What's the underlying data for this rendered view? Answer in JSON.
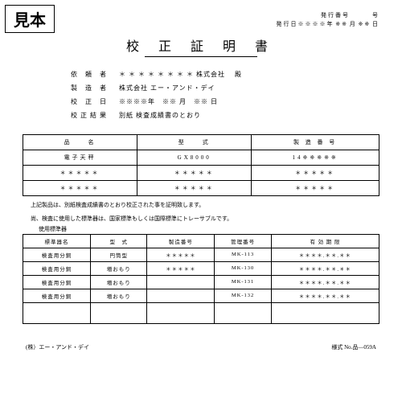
{
  "sample": "見本",
  "hdr": {
    "issue_no_label": "発行番号",
    "issue_no_suffix": "号",
    "issue_date_label": "発行日",
    "date_mask": "※※※※",
    "y": "年",
    "m_mask": "※※",
    "m": "月",
    "d_mask": "※※",
    "d": "日"
  },
  "title": "校 正 証 明 書",
  "info": {
    "requester_label": "依 頼 者",
    "requester_value": "＊ ＊ ＊ ＊ ＊ ＊ ＊ ＊ 株式会社",
    "requester_suffix": "殿",
    "maker_label": "製 造 者",
    "maker_value": "株式会社 エー・アンド・デイ",
    "caldate_label": "校 正 日",
    "caldate_value": "※※※※年　※※ 月　※※ 日",
    "result_label": "校正結果",
    "result_value": "別紙 検査成績書のとおり"
  },
  "t1": {
    "h1": "品　　名",
    "h2": "型　　式",
    "h3": "製 造 番 号",
    "r1c1": "電子天秤",
    "r1c2": "GX8000",
    "r1c3": "14※※※※※",
    "mask": "＊＊＊＊＊"
  },
  "note1": "上記製品は、別紙検査成績書のとおり校正された事を証明致します。",
  "note2": "尚、検査に使用した標準器は、国家標準もしくは国際標準にトレーサブルです。",
  "sub": "使用標準器",
  "t2": {
    "h1": "標準器名",
    "h2": "型　式",
    "h3": "製造番号",
    "h4": "管理番号",
    "h5": "有 効 期 限",
    "rows": [
      {
        "c1": "検査用分銅",
        "c2": "円筒型",
        "c3": "＊＊＊＊＊",
        "c4": "MK-113",
        "c5": "＊＊＊＊.＊＊.＊＊"
      },
      {
        "c1": "検査用分銅",
        "c2": "増おもり",
        "c3": "＊＊＊＊＊",
        "c4": "MK-130",
        "c5": "＊＊＊＊.＊＊.＊＊"
      },
      {
        "c1": "検査用分銅",
        "c2": "増おもり",
        "c3": "",
        "c4": "MK-131",
        "c5": "＊＊＊＊.＊＊.＊＊"
      },
      {
        "c1": "検査用分銅",
        "c2": "増おもり",
        "c3": "",
        "c4": "MK-132",
        "c5": "＊＊＊＊.＊＊.＊＊"
      }
    ]
  },
  "footer_left": "(株）エー・アンド・デイ",
  "footer_right": "様式 No.品―059A"
}
